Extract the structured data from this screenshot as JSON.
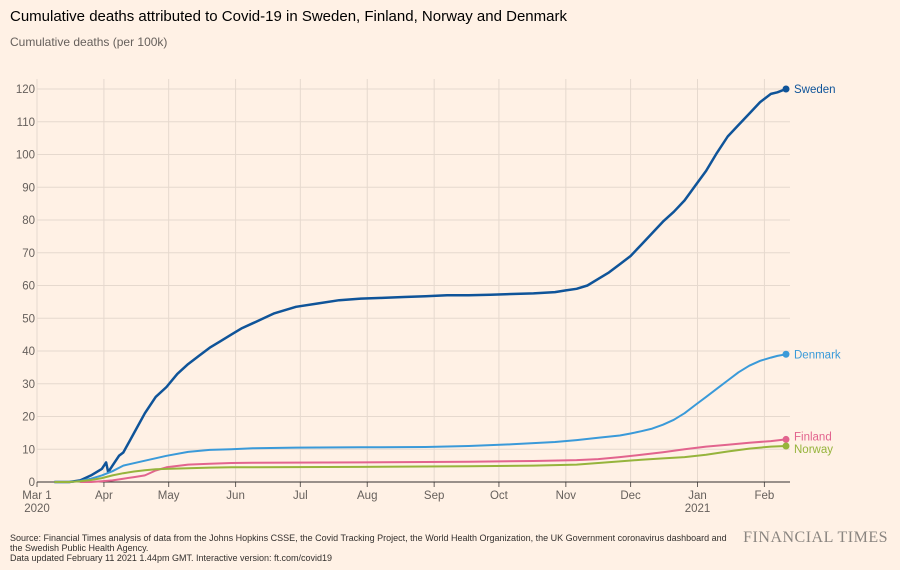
{
  "header": {
    "title": "Cumulative deaths attributed to Covid-19 in Sweden, Finland, Norway and Denmark",
    "subtitle": "Cumulative deaths (per 100k)"
  },
  "footer": {
    "source": "Source: Financial Times analysis of data from the Johns Hopkins CSSE, the Covid Tracking Project, the World Health Organization, the UK Government coronavirus dashboard and the Swedish Public Health Agency.",
    "updated": "Data updated February 11 2021 1.44pm GMT. Interactive version: ft.com/covid19",
    "brand": "FINANCIAL TIMES"
  },
  "colors": {
    "background": "#fff1e5",
    "grid": "#e6d9ce",
    "Sweden": "#0f5499",
    "Denmark": "#3a9ad9",
    "Finland": "#e2648e",
    "Norway": "#96b43c"
  },
  "chart_data": {
    "type": "line",
    "title": "Cumulative deaths attributed to Covid-19 in Sweden, Finland, Norway and Denmark",
    "ylabel": "Cumulative deaths (per 100k)",
    "xlabel": "",
    "x_unit": "days since Mar 1 2020",
    "xlim": [
      0,
      347
    ],
    "ylim": [
      0,
      120
    ],
    "y_ticks": [
      0,
      10,
      20,
      30,
      40,
      50,
      60,
      70,
      80,
      90,
      100,
      110,
      120
    ],
    "x_ticks": [
      {
        "day": 0,
        "label": "Mar 1",
        "sublabel": "2020"
      },
      {
        "day": 31,
        "label": "Apr",
        "sublabel": ""
      },
      {
        "day": 61,
        "label": "May",
        "sublabel": ""
      },
      {
        "day": 92,
        "label": "Jun",
        "sublabel": ""
      },
      {
        "day": 122,
        "label": "Jul",
        "sublabel": ""
      },
      {
        "day": 153,
        "label": "Aug",
        "sublabel": ""
      },
      {
        "day": 184,
        "label": "Sep",
        "sublabel": ""
      },
      {
        "day": 214,
        "label": "Oct",
        "sublabel": ""
      },
      {
        "day": 245,
        "label": "Nov",
        "sublabel": ""
      },
      {
        "day": 275,
        "label": "Dec",
        "sublabel": ""
      },
      {
        "day": 306,
        "label": "Jan",
        "sublabel": "2021"
      },
      {
        "day": 337,
        "label": "Feb",
        "sublabel": ""
      }
    ],
    "grid": true,
    "series": [
      {
        "name": "Sweden",
        "end_label": "Sweden",
        "x": [
          8,
          15,
          20,
          25,
          30,
          32,
          33,
          35,
          38,
          40,
          45,
          50,
          55,
          60,
          65,
          70,
          75,
          80,
          85,
          90,
          95,
          100,
          105,
          110,
          115,
          120,
          130,
          140,
          150,
          160,
          170,
          180,
          190,
          200,
          210,
          220,
          230,
          240,
          245,
          250,
          255,
          260,
          265,
          270,
          275,
          280,
          285,
          290,
          295,
          300,
          305,
          310,
          315,
          320,
          325,
          330,
          335,
          340,
          343,
          347
        ],
        "values": [
          0,
          0,
          0.5,
          2,
          4,
          6,
          3,
          5,
          8,
          9,
          15,
          21,
          26,
          29,
          33,
          36,
          38.5,
          41,
          43,
          45,
          47,
          48.5,
          50,
          51.5,
          52.5,
          53.5,
          54.5,
          55.5,
          56,
          56.2,
          56.5,
          56.7,
          57,
          57,
          57.2,
          57.4,
          57.6,
          58,
          58.5,
          59,
          60,
          62,
          64,
          66.5,
          69,
          72.5,
          76,
          79.5,
          82.5,
          86,
          90.5,
          95,
          100.5,
          105.5,
          109,
          112.5,
          116,
          118.5,
          119,
          120
        ]
      },
      {
        "name": "Denmark",
        "end_label": "Denmark",
        "x": [
          8,
          15,
          20,
          25,
          30,
          35,
          40,
          50,
          60,
          70,
          80,
          90,
          100,
          120,
          150,
          180,
          200,
          220,
          240,
          250,
          260,
          270,
          275,
          280,
          285,
          290,
          295,
          300,
          305,
          310,
          315,
          320,
          325,
          330,
          335,
          340,
          343,
          347
        ],
        "values": [
          0,
          0,
          0.3,
          1,
          2,
          3.3,
          5,
          6.5,
          8,
          9.2,
          9.8,
          10,
          10.3,
          10.5,
          10.6,
          10.7,
          11,
          11.5,
          12.2,
          12.8,
          13.5,
          14.2,
          14.8,
          15.5,
          16.3,
          17.5,
          19,
          21,
          23.5,
          26,
          28.5,
          31,
          33.5,
          35.5,
          37,
          38,
          38.5,
          39
        ]
      },
      {
        "name": "Finland",
        "end_label": "Finland",
        "x": [
          20,
          25,
          30,
          35,
          40,
          45,
          50,
          55,
          60,
          70,
          80,
          90,
          100,
          150,
          200,
          230,
          250,
          260,
          270,
          280,
          290,
          300,
          310,
          320,
          330,
          340,
          347
        ],
        "values": [
          0,
          0,
          0.2,
          0.5,
          1,
          1.5,
          2,
          3.5,
          4.5,
          5.3,
          5.6,
          5.8,
          5.9,
          6,
          6.2,
          6.4,
          6.7,
          7,
          7.6,
          8.3,
          9.1,
          10,
          10.8,
          11.4,
          12,
          12.5,
          13
        ]
      },
      {
        "name": "Norway",
        "end_label": "Norway",
        "x": [
          8,
          15,
          20,
          25,
          30,
          35,
          40,
          45,
          50,
          55,
          60,
          70,
          80,
          90,
          100,
          150,
          200,
          230,
          250,
          260,
          270,
          280,
          290,
          300,
          310,
          320,
          330,
          340,
          347
        ],
        "values": [
          0,
          0,
          0.2,
          0.6,
          1.2,
          2,
          2.7,
          3.2,
          3.6,
          3.9,
          4,
          4.2,
          4.4,
          4.5,
          4.5,
          4.6,
          4.8,
          5,
          5.3,
          5.8,
          6.3,
          6.8,
          7.2,
          7.6,
          8.3,
          9.3,
          10.2,
          10.8,
          11
        ]
      }
    ]
  }
}
